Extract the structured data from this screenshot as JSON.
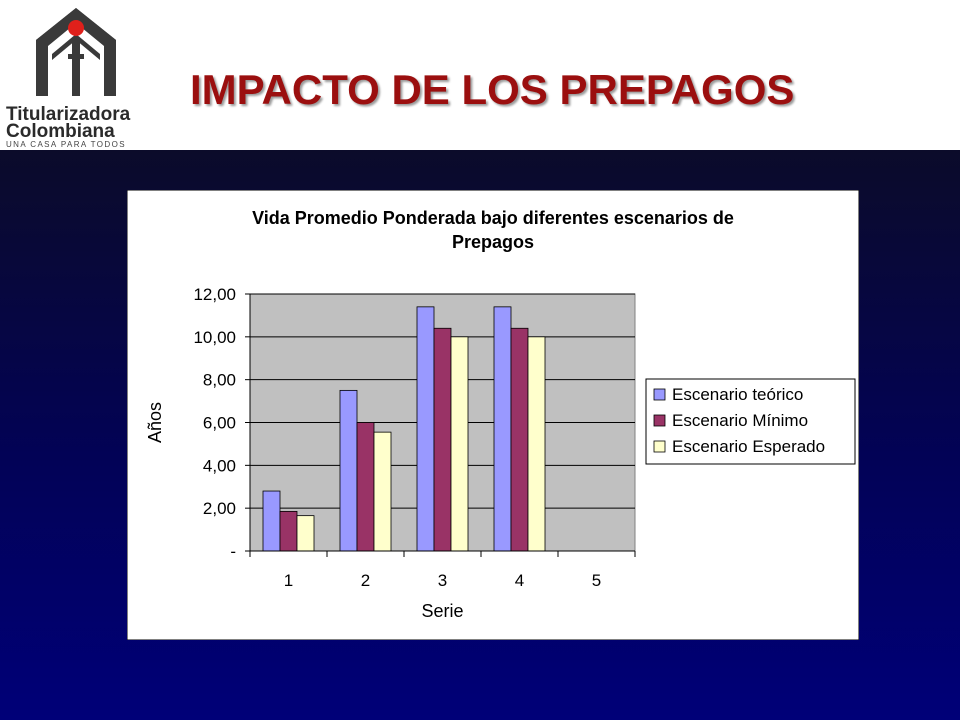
{
  "header": {
    "title": "IMPACTO DE LOS PREPAGOS",
    "logo": {
      "name_line1": "Titularizadora",
      "name_line2": "Colombiana",
      "tagline": "UNA CASA PARA TODOS",
      "colors": {
        "house": "#3a3a3a",
        "dot": "#e0201b"
      }
    }
  },
  "chart_data": {
    "type": "bar",
    "title": "Vida Promedio Ponderada bajo diferentes escenarios de Prepagos",
    "title_lines": [
      "Vida Promedio Ponderada bajo diferentes escenarios de",
      "Prepagos"
    ],
    "xlabel": "Serie",
    "ylabel": "Años",
    "categories": [
      "1",
      "2",
      "3",
      "4",
      "5"
    ],
    "ylim": [
      0,
      12
    ],
    "yticks": [
      0,
      2,
      4,
      6,
      8,
      10,
      12
    ],
    "ytick_labels": [
      "-",
      "2,00",
      "4,00",
      "6,00",
      "8,00",
      "10,00",
      "12,00"
    ],
    "grid": true,
    "legend_position": "right",
    "series": [
      {
        "name": "Escenario teórico",
        "color": "#9999ff",
        "values": [
          2.8,
          7.5,
          11.4,
          11.4,
          null
        ]
      },
      {
        "name": "Escenario Mínimo",
        "color": "#993366",
        "values": [
          1.85,
          6.0,
          10.4,
          10.4,
          null
        ]
      },
      {
        "name": "Escenario Esperado",
        "color": "#ffffcc",
        "values": [
          1.65,
          5.55,
          10.0,
          10.0,
          null
        ]
      }
    ],
    "colors": {
      "chart_bg": "#ffffff",
      "plot_bg": "#c0c0c0",
      "border": "#000000"
    }
  }
}
